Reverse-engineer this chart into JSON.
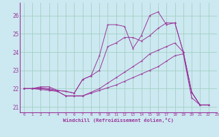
{
  "xlabel": "Windchill (Refroidissement éolien,°C)",
  "background_color": "#cce8f0",
  "grid_color": "#99ccbb",
  "line_color": "#993399",
  "xlim": [
    -0.5,
    23
  ],
  "ylim": [
    20.7,
    26.7
  ],
  "yticks": [
    21,
    22,
    23,
    24,
    25,
    26
  ],
  "xticks": [
    0,
    1,
    2,
    3,
    4,
    5,
    6,
    7,
    8,
    9,
    10,
    11,
    12,
    13,
    14,
    15,
    16,
    17,
    18,
    19,
    20,
    21,
    22,
    23
  ],
  "series": [
    {
      "x": [
        0,
        1,
        2,
        3,
        4,
        5,
        6,
        7,
        8,
        9,
        10,
        11,
        12,
        13,
        14,
        15,
        16,
        17,
        18,
        19,
        20,
        21,
        22
      ],
      "y": [
        22.0,
        22.0,
        22.1,
        22.1,
        21.9,
        21.85,
        21.75,
        22.5,
        22.7,
        23.8,
        25.5,
        25.5,
        25.4,
        24.2,
        24.9,
        26.0,
        26.2,
        25.5,
        25.6,
        24.0,
        21.8,
        21.1,
        21.1
      ]
    },
    {
      "x": [
        0,
        1,
        2,
        3,
        4,
        5,
        6,
        7,
        8,
        9,
        10,
        11,
        12,
        13,
        14,
        15,
        16,
        17,
        18,
        19,
        20,
        21,
        22
      ],
      "y": [
        22.0,
        22.0,
        22.05,
        22.0,
        21.9,
        21.85,
        21.75,
        22.5,
        22.7,
        23.0,
        24.3,
        24.5,
        24.8,
        24.8,
        24.6,
        24.9,
        25.3,
        25.6,
        25.6,
        24.0,
        21.8,
        21.1,
        21.1
      ]
    },
    {
      "x": [
        0,
        1,
        2,
        3,
        4,
        5,
        6,
        7,
        8,
        9,
        10,
        11,
        12,
        13,
        14,
        15,
        16,
        17,
        18,
        19,
        20,
        21,
        22
      ],
      "y": [
        22.0,
        22.0,
        22.0,
        21.95,
        21.85,
        21.6,
        21.6,
        21.6,
        21.8,
        22.0,
        22.3,
        22.6,
        22.9,
        23.2,
        23.5,
        23.9,
        24.1,
        24.3,
        24.5,
        24.0,
        21.8,
        21.1,
        21.1
      ]
    },
    {
      "x": [
        0,
        1,
        2,
        3,
        4,
        5,
        6,
        7,
        8,
        9,
        10,
        11,
        12,
        13,
        14,
        15,
        16,
        17,
        18,
        19,
        20,
        21,
        22
      ],
      "y": [
        22.0,
        22.0,
        21.95,
        21.9,
        21.85,
        21.6,
        21.6,
        21.6,
        21.75,
        21.9,
        22.05,
        22.2,
        22.4,
        22.6,
        22.8,
        23.0,
        23.2,
        23.5,
        23.8,
        23.9,
        21.5,
        21.1,
        21.1
      ]
    }
  ]
}
